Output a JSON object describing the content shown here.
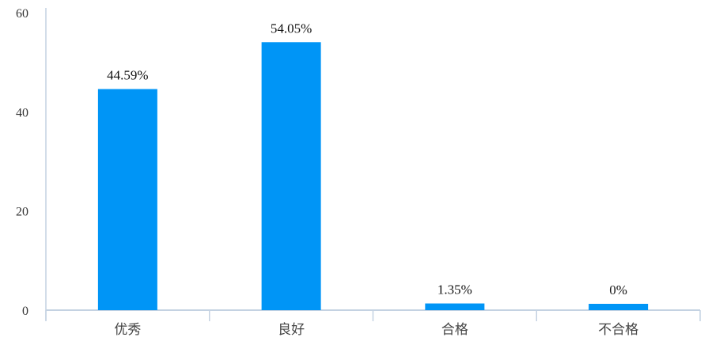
{
  "chart_data": {
    "type": "bar",
    "categories": [
      "优秀",
      "良好",
      "合格",
      "不合格"
    ],
    "values": [
      44.59,
      54.05,
      1.35,
      0
    ],
    "data_labels": [
      "44.59%",
      "54.05%",
      "1.35%",
      "0%"
    ],
    "title": "",
    "xlabel": "",
    "ylabel": "",
    "ylim": [
      0,
      60
    ],
    "yticks": [
      "0",
      "20",
      "40",
      "60"
    ],
    "grid": false,
    "legend": "none",
    "bar_color": "#0095f6",
    "axis_color": "#c4d2e2"
  }
}
